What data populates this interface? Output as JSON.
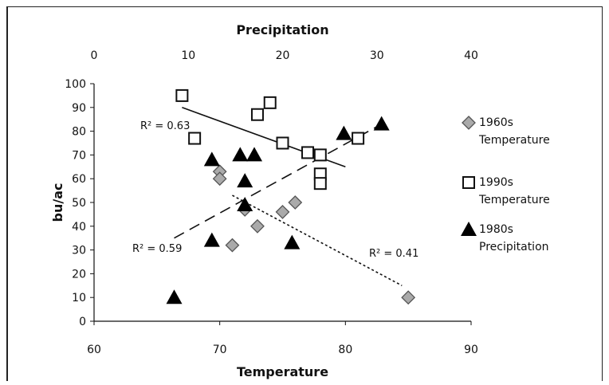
{
  "chart_data": {
    "type": "scatter",
    "top_axis": {
      "label": "Precipitation",
      "range": [
        0,
        40
      ],
      "ticks": [
        0,
        10,
        20,
        30,
        40
      ]
    },
    "bottom_axis": {
      "label": "Temperature",
      "range": [
        60,
        90
      ],
      "ticks": [
        60,
        70,
        80,
        90
      ]
    },
    "y_axis": {
      "label": "bu/ac",
      "range": [
        0,
        100
      ],
      "ticks": [
        0,
        10,
        20,
        30,
        40,
        50,
        60,
        70,
        80,
        90,
        100
      ]
    },
    "grid": false,
    "legend_position": "right",
    "series": [
      {
        "name": "1960s Temperature",
        "marker": "diamond",
        "x_axis": "bottom",
        "color": "#aaaaaa",
        "points": [
          [
            70,
            63
          ],
          [
            70,
            60
          ],
          [
            71,
            32
          ],
          [
            72,
            47
          ],
          [
            73,
            40
          ],
          [
            75,
            46
          ],
          [
            76,
            50
          ],
          [
            85,
            10
          ]
        ],
        "trend": {
          "x1": 71,
          "y1": 53,
          "x2": 84.5,
          "y2": 15,
          "style": "dotted",
          "r2_label": "R² = 0.41"
        }
      },
      {
        "name": "1990s Temperature",
        "marker": "square",
        "x_axis": "bottom",
        "color": "#ffffff",
        "points": [
          [
            67,
            95
          ],
          [
            68,
            77
          ],
          [
            73,
            87
          ],
          [
            74,
            92
          ],
          [
            75,
            75
          ],
          [
            77,
            71
          ],
          [
            78,
            70
          ],
          [
            78,
            62
          ],
          [
            78,
            58
          ],
          [
            81,
            77
          ]
        ],
        "trend": {
          "x1": 67,
          "y1": 90,
          "x2": 80,
          "y2": 65,
          "style": "solid",
          "r2_label": "R² = 0.63"
        }
      },
      {
        "name": "1980s Precipitation",
        "marker": "triangle",
        "x_axis": "top",
        "color": "#000000",
        "points": [
          [
            8.5,
            10
          ],
          [
            12.5,
            68
          ],
          [
            12.5,
            34
          ],
          [
            15.5,
            70
          ],
          [
            16,
            59
          ],
          [
            16,
            49
          ],
          [
            17,
            70
          ],
          [
            21,
            33
          ],
          [
            26.5,
            79
          ],
          [
            30.5,
            83
          ]
        ],
        "trend": {
          "x1": 8.5,
          "y1": 35,
          "x2": 30.5,
          "y2": 83,
          "style": "dashed",
          "r2_label": "R² = 0.59"
        }
      }
    ],
    "legend": [
      {
        "line1": "1960s",
        "line2": "Temperature"
      },
      {
        "line1": "1990s",
        "line2": "Temperature"
      },
      {
        "line1": "1980s",
        "line2": "Precipitation"
      }
    ]
  }
}
